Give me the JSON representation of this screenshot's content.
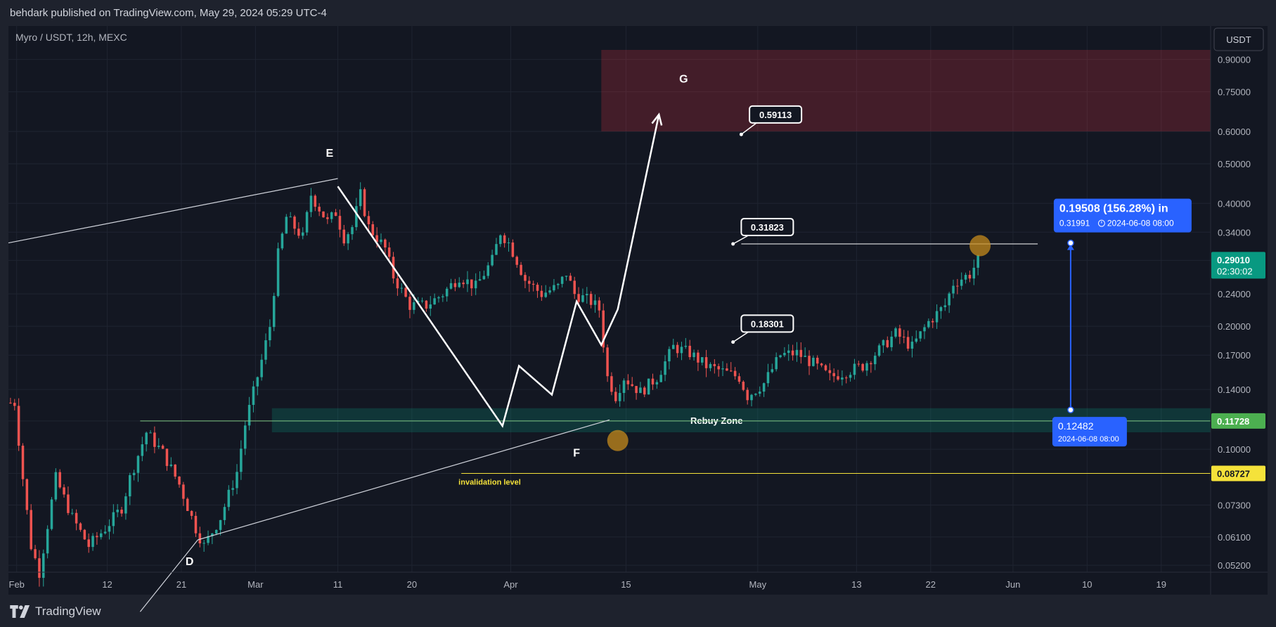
{
  "header": {
    "attribution": "behdark published on TradingView.com, May 29, 2024 05:29 UTC-4"
  },
  "symbol": {
    "legend": "Myro / USDT, 12h, MEXC"
  },
  "currency_button": "USDT",
  "footer": {
    "brand": "TradingView"
  },
  "colors": {
    "background": "#131722",
    "frame": "#1e222d",
    "up": "#26a69a",
    "down": "#ef5350",
    "accent_blue": "#2962ff",
    "yellow": "#f5e23a"
  },
  "chart_data": {
    "type": "candlestick",
    "title": "Myro / USDT, 12h, MEXC",
    "y_scale": "log",
    "ylim": [
      0.05,
      0.95
    ],
    "x_range": [
      "2024-01-31",
      "2024-06-25"
    ],
    "y_ticks": [
      "0.90000",
      "0.75000",
      "0.60000",
      "0.50000",
      "0.40000",
      "0.34000",
      "0.29010",
      "0.24000",
      "0.20000",
      "0.17000",
      "0.14000",
      "0.11728",
      "0.10000",
      "0.08727",
      "0.07300",
      "0.06100",
      "0.05200"
    ],
    "x_ticks": [
      {
        "label": "Feb",
        "date": "2024-02-01"
      },
      {
        "label": "12",
        "date": "2024-02-12"
      },
      {
        "label": "21",
        "date": "2024-02-21"
      },
      {
        "label": "Mar",
        "date": "2024-03-01"
      },
      {
        "label": "11",
        "date": "2024-03-11"
      },
      {
        "label": "20",
        "date": "2024-03-20"
      },
      {
        "label": "Apr",
        "date": "2024-04-01"
      },
      {
        "label": "15",
        "date": "2024-04-15"
      },
      {
        "label": "May",
        "date": "2024-05-01"
      },
      {
        "label": "13",
        "date": "2024-05-13"
      },
      {
        "label": "22",
        "date": "2024-05-22"
      },
      {
        "label": "Jun",
        "date": "2024-06-01"
      },
      {
        "label": "10",
        "date": "2024-06-10"
      },
      {
        "label": "19",
        "date": "2024-06-19"
      }
    ],
    "price_path": [
      [
        "2024-02-01",
        0.13
      ],
      [
        "2024-02-02",
        0.085
      ],
      [
        "2024-02-03",
        0.058
      ],
      [
        "2024-02-04",
        0.05
      ],
      [
        "2024-02-06",
        0.085
      ],
      [
        "2024-02-08",
        0.068
      ],
      [
        "2024-02-10",
        0.058
      ],
      [
        "2024-02-12",
        0.064
      ],
      [
        "2024-02-14",
        0.072
      ],
      [
        "2024-02-15",
        0.085
      ],
      [
        "2024-02-17",
        0.11
      ],
      [
        "2024-02-19",
        0.098
      ],
      [
        "2024-02-21",
        0.082
      ],
      [
        "2024-02-23",
        0.064
      ],
      [
        "2024-02-24",
        0.058
      ],
      [
        "2024-02-26",
        0.068
      ],
      [
        "2024-02-28",
        0.088
      ],
      [
        "2024-02-29",
        0.115
      ],
      [
        "2024-03-02",
        0.165
      ],
      [
        "2024-03-03",
        0.2
      ],
      [
        "2024-03-04",
        0.3
      ],
      [
        "2024-03-05",
        0.37
      ],
      [
        "2024-03-07",
        0.33
      ],
      [
        "2024-03-08",
        0.42
      ],
      [
        "2024-03-10",
        0.36
      ],
      [
        "2024-03-11",
        0.38
      ],
      [
        "2024-03-12",
        0.33
      ],
      [
        "2024-03-13",
        0.35
      ],
      [
        "2024-03-14",
        0.42
      ],
      [
        "2024-03-15",
        0.35
      ],
      [
        "2024-03-17",
        0.31
      ],
      [
        "2024-03-18",
        0.265
      ],
      [
        "2024-03-20",
        0.225
      ],
      [
        "2024-03-22",
        0.225
      ],
      [
        "2024-03-24",
        0.24
      ],
      [
        "2024-03-26",
        0.265
      ],
      [
        "2024-03-28",
        0.25
      ],
      [
        "2024-03-30",
        0.29
      ],
      [
        "2024-03-31",
        0.34
      ],
      [
        "2024-04-01",
        0.32
      ],
      [
        "2024-04-02",
        0.29
      ],
      [
        "2024-04-03",
        0.26
      ],
      [
        "2024-04-05",
        0.24
      ],
      [
        "2024-04-07",
        0.25
      ],
      [
        "2024-04-08",
        0.27
      ],
      [
        "2024-04-09",
        0.24
      ],
      [
        "2024-04-11",
        0.23
      ],
      [
        "2024-04-12",
        0.22
      ],
      [
        "2024-04-13",
        0.15
      ],
      [
        "2024-04-14",
        0.135
      ],
      [
        "2024-04-15",
        0.15
      ],
      [
        "2024-04-17",
        0.138
      ],
      [
        "2024-04-19",
        0.15
      ],
      [
        "2024-04-21",
        0.178
      ],
      [
        "2024-04-23",
        0.172
      ],
      [
        "2024-04-25",
        0.16
      ],
      [
        "2024-04-27",
        0.155
      ],
      [
        "2024-04-29",
        0.15
      ],
      [
        "2024-04-30",
        0.135
      ],
      [
        "2024-05-02",
        0.145
      ],
      [
        "2024-05-04",
        0.17
      ],
      [
        "2024-05-06",
        0.172
      ],
      [
        "2024-05-08",
        0.162
      ],
      [
        "2024-05-10",
        0.15
      ],
      [
        "2024-05-12",
        0.155
      ],
      [
        "2024-05-14",
        0.16
      ],
      [
        "2024-05-16",
        0.175
      ],
      [
        "2024-05-18",
        0.192
      ],
      [
        "2024-05-20",
        0.178
      ],
      [
        "2024-05-22",
        0.205
      ],
      [
        "2024-05-24",
        0.225
      ],
      [
        "2024-05-25",
        0.255
      ],
      [
        "2024-05-26",
        0.262
      ],
      [
        "2024-05-27",
        0.268
      ],
      [
        "2024-05-28",
        0.29
      ]
    ],
    "zones": [
      {
        "name": "target",
        "from_date": "2024-04-12",
        "to_date": "2024-06-25",
        "low": 0.6,
        "high": 0.95,
        "color": "#f23645"
      },
      {
        "name": "Rebuy Zone",
        "label": "Rebuy Zone",
        "from_date": "2024-03-03",
        "to_date": "2024-06-25",
        "low": 0.11,
        "high": 0.126,
        "color": "#089981"
      }
    ],
    "horizontal_lines": [
      {
        "value": 0.11728,
        "from_date": "2024-02-16",
        "color": "#81c784"
      },
      {
        "value": 0.08727,
        "from_date": "2024-03-26",
        "color": "#f5e23a",
        "label": "invalidation level"
      },
      {
        "value": 0.31823,
        "from_date": "2024-04-29",
        "to_date": "2024-06-04",
        "color": "#ffffff"
      }
    ],
    "trend_lines": [
      {
        "from": [
          "2024-01-31",
          0.32
        ],
        "to": [
          "2024-03-11",
          0.46
        ]
      },
      {
        "from": [
          "2024-02-16",
          0.04
        ],
        "to": [
          "2024-02-23",
          0.06
        ]
      },
      {
        "from": [
          "2024-02-23",
          0.06
        ],
        "to": [
          "2024-04-13",
          0.118
        ]
      }
    ],
    "wave_path": [
      [
        "2024-03-11",
        0.44
      ],
      [
        "2024-03-31",
        0.114
      ],
      [
        "2024-04-02",
        0.16
      ],
      [
        "2024-04-06",
        0.136
      ],
      [
        "2024-04-09",
        0.23
      ],
      [
        "2024-04-12",
        0.18
      ],
      [
        "2024-04-14",
        0.22
      ],
      [
        "2024-04-19",
        0.66
      ]
    ],
    "wave_labels": [
      {
        "text": "E",
        "date": "2024-03-10",
        "value": 0.52
      },
      {
        "text": "D",
        "date": "2024-02-22",
        "value": 0.052
      },
      {
        "text": "F",
        "date": "2024-04-09",
        "value": 0.096
      },
      {
        "text": "G",
        "date": "2024-04-22",
        "value": 0.79
      }
    ],
    "callouts": [
      {
        "text": "0.59113",
        "anchor": [
          "2024-04-29",
          0.59
        ],
        "box": [
          "2024-04-30",
          0.66
        ]
      },
      {
        "text": "0.31823",
        "anchor": [
          "2024-04-28",
          0.31823
        ],
        "box": [
          "2024-04-29",
          0.35
        ]
      },
      {
        "text": "0.18301",
        "anchor": [
          "2024-04-28",
          0.183
        ],
        "box": [
          "2024-04-29",
          0.203
        ]
      }
    ],
    "circles": [
      {
        "date": "2024-04-14",
        "value": 0.105
      },
      {
        "date": "2024-05-28",
        "value": 0.315
      }
    ],
    "measure": {
      "date": "2024-06-08",
      "from_value": 0.12482,
      "to_value": 0.31991,
      "change": "0.19508 (156.28%) in",
      "target_price": "0.31991",
      "target_time": "2024-06-08  08:00",
      "start_price": "0.12482",
      "start_time": "2024-06-08 08:00"
    },
    "price_labels": [
      {
        "price": "0.29010",
        "countdown": "02:30:02",
        "value": 0.2901,
        "color": "#089981"
      },
      {
        "price": "0.11728",
        "value": 0.11728,
        "color": "#4caf50"
      },
      {
        "price": "0.08727",
        "value": 0.08727,
        "color": "#f5e23a"
      }
    ]
  }
}
